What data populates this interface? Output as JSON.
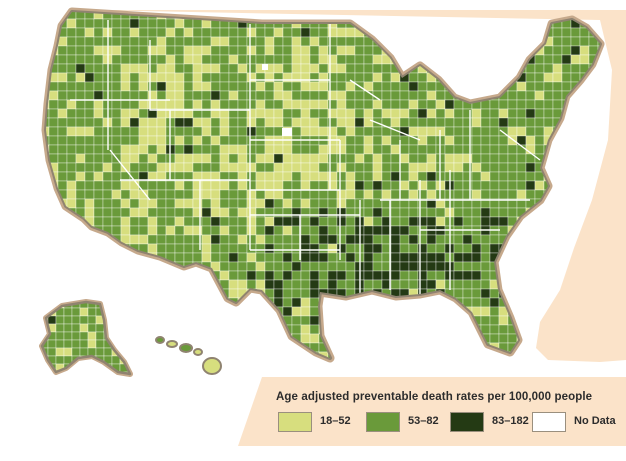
{
  "colors": {
    "background_cream": "#fbe3c9",
    "border_tan": "#c6a98c",
    "state_line": "#ffffff",
    "outline": "#8f8370"
  },
  "legend": {
    "title": "Age adjusted preventable death rates per 100,000 people",
    "items": [
      {
        "label": "18–52",
        "color": "#d7de7e"
      },
      {
        "label": "53–82",
        "color": "#6a9a3a"
      },
      {
        "label": "83–182",
        "color": "#243a14"
      },
      {
        "label": "No Data",
        "color": "#ffffff"
      }
    ]
  }
}
